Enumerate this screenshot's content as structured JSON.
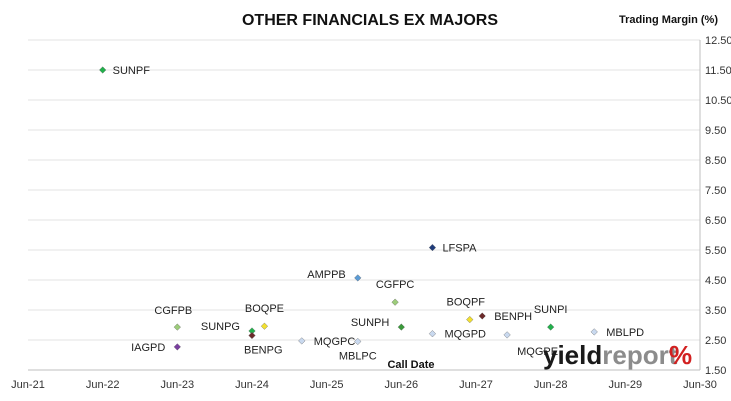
{
  "chart_data": {
    "type": "scatter",
    "title": "OTHER FINANCIALS EX MAJORS",
    "ylabel": "Trading Margin (%)",
    "xlabel": "Call Date",
    "x_ticks": [
      "Jun-21",
      "Jun-22",
      "Jun-23",
      "Jun-24",
      "Jun-25",
      "Jun-26",
      "Jun-27",
      "Jun-28",
      "Jun-29",
      "Jun-30"
    ],
    "y_ticks": [
      "12.50",
      "11.50",
      "10.50",
      "9.50",
      "8.50",
      "7.50",
      "6.50",
      "5.50",
      "4.50",
      "3.50",
      "2.50",
      "1.50"
    ],
    "xlim": [
      "2021-06",
      "2030-06"
    ],
    "ylim": [
      1.5,
      12.5
    ],
    "grid": true,
    "y_axis_side": "right",
    "points": [
      {
        "name": "SUNPF",
        "x": "2022-06",
        "y": 11.5,
        "color": "#21b04b"
      },
      {
        "name": "CGFPB",
        "x": "2023-06",
        "y": 2.93,
        "color": "#9ccc7a"
      },
      {
        "name": "IAGPD",
        "x": "2023-06",
        "y": 2.27,
        "color": "#7a3fa0"
      },
      {
        "name": "SUNPG",
        "x": "2024-06",
        "y": 2.8,
        "color": "#21b04b"
      },
      {
        "name": "BENPG",
        "x": "2024-06",
        "y": 2.65,
        "color": "#6b2a2a"
      },
      {
        "name": "BOQPE",
        "x": "2024-08",
        "y": 2.96,
        "color": "#f2e030"
      },
      {
        "name": "MQGPC",
        "x": "2025-02",
        "y": 2.47,
        "color": "#c9d9ef"
      },
      {
        "name": "AMPPB",
        "x": "2025-11",
        "y": 4.57,
        "color": "#5b9bd5"
      },
      {
        "name": "MBLPC",
        "x": "2025-11",
        "y": 2.45,
        "color": "#c9d9ef"
      },
      {
        "name": "CGFPC",
        "x": "2026-05",
        "y": 3.76,
        "color": "#9ccc7a"
      },
      {
        "name": "SUNPH",
        "x": "2026-06",
        "y": 2.93,
        "color": "#3a9a3a"
      },
      {
        "name": "MQGPD",
        "x": "2026-11",
        "y": 2.71,
        "color": "#c9d9ef"
      },
      {
        "name": "LFSPA",
        "x": "2026-11",
        "y": 5.58,
        "color": "#1f3b7a"
      },
      {
        "name": "BOQPF",
        "x": "2027-05",
        "y": 3.18,
        "color": "#f2e030"
      },
      {
        "name": "BENPH",
        "x": "2027-07",
        "y": 3.3,
        "color": "#6b2a2a"
      },
      {
        "name": "MQGPE",
        "x": "2027-11",
        "y": 2.67,
        "color": "#c9d9ef"
      },
      {
        "name": "SUNPI",
        "x": "2028-06",
        "y": 2.93,
        "color": "#21b04b"
      },
      {
        "name": "MBLPD",
        "x": "2029-01",
        "y": 2.77,
        "color": "#c9d9ef"
      }
    ]
  },
  "logo": {
    "part1": "yield",
    "part2": "report",
    "part3": "%"
  }
}
